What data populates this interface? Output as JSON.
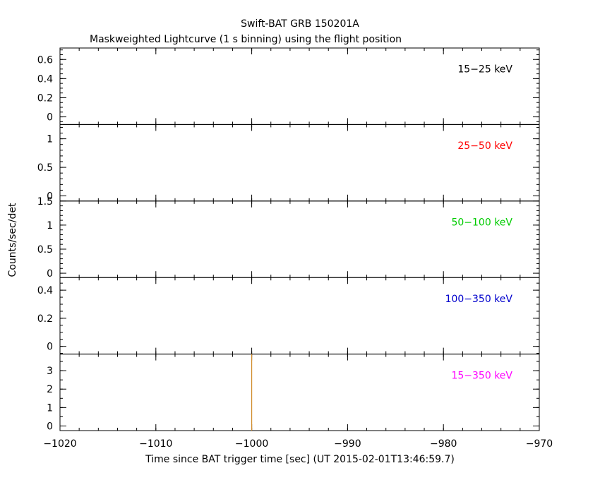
{
  "chart_data": {
    "type": "line",
    "title": "Swift-BAT GRB 150201A",
    "subtitle": "Maskweighted Lightcurve (1 s binning) using the flight position",
    "xlabel": "Time since BAT trigger time [sec] (UT 2015-02-01T13:46:59.7)",
    "ylabel": "Counts/sec/det",
    "xlim": [
      -1020,
      -970
    ],
    "x_ticks": [
      -1020,
      -1010,
      -1000,
      -990,
      -980,
      -970
    ],
    "x_tick_labels": [
      "−1020",
      "−1010",
      "−1000",
      "−990",
      "−980",
      "−970"
    ],
    "x_minor_step": 2,
    "line_color": "#d08a28",
    "panels": [
      {
        "label": "15−25 keV",
        "color": "#000000",
        "ylim": [
          -0.08,
          0.72
        ],
        "y_ticks": [
          0,
          0.2,
          0.4,
          0.6
        ],
        "y_tick_labels": [
          "0",
          "0.2",
          "0.4",
          "0.6"
        ],
        "y_minor_step": 0.05,
        "series": []
      },
      {
        "label": "25−50 keV",
        "color": "#ff0000",
        "ylim": [
          -0.09,
          1.25
        ],
        "y_ticks": [
          0,
          0.5,
          1
        ],
        "y_tick_labels": [
          "0",
          "0.5",
          "1"
        ],
        "y_minor_step": 0.1,
        "series": []
      },
      {
        "label": "50−100 keV",
        "color": "#00cc00",
        "ylim": [
          -0.09,
          1.5
        ],
        "y_ticks": [
          0,
          0.5,
          1,
          1.5
        ],
        "y_tick_labels": [
          "0",
          "0.5",
          "1",
          "1.5"
        ],
        "y_minor_step": 0.1,
        "series": []
      },
      {
        "label": "100−350 keV",
        "color": "#0000cc",
        "ylim": [
          -0.055,
          0.49
        ],
        "y_ticks": [
          0,
          0.2,
          0.4
        ],
        "y_tick_labels": [
          "0",
          "0.2",
          "0.4"
        ],
        "y_minor_step": 0.05,
        "series": []
      },
      {
        "label": "15−350 keV",
        "color": "#ff00ff",
        "ylim": [
          -0.25,
          3.9
        ],
        "y_ticks": [
          0,
          1,
          2,
          3
        ],
        "y_tick_labels": [
          "0",
          "1",
          "2",
          "3"
        ],
        "y_minor_step": 0.5,
        "series": [
          {
            "x": [
              -1000,
              -1000
            ],
            "y": [
              -0.25,
              3.9
            ]
          }
        ]
      }
    ]
  }
}
